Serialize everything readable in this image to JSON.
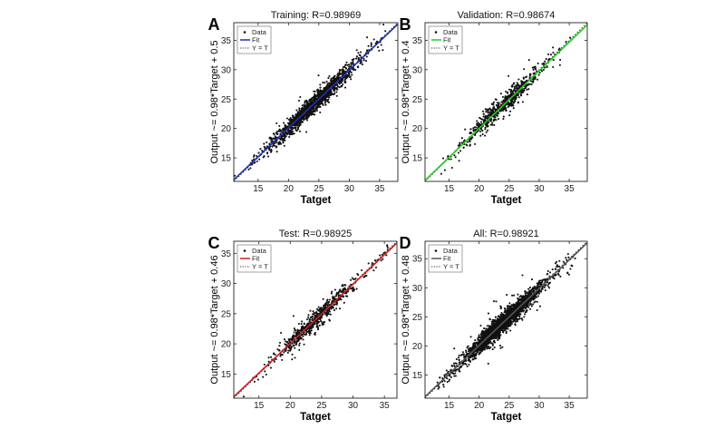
{
  "chart_data": [
    {
      "type": "scatter",
      "panel_letter": "A",
      "title": "Training: R=0.98969",
      "xlabel": "Tatget",
      "ylabel": "Output ~= 0.98*Target + 0.5",
      "xlim": [
        11,
        38
      ],
      "ylim": [
        11,
        38
      ],
      "xticks": [
        15,
        20,
        25,
        30,
        35
      ],
      "yticks": [
        15,
        20,
        25,
        30,
        35
      ],
      "fit": {
        "slope": 0.98,
        "intercept": 0.5,
        "color": "#1f2fb0"
      },
      "legend": [
        "Data",
        "Fit",
        "Y = T"
      ],
      "legend_position": "top-left",
      "n_points": 1500,
      "spread": 0.75,
      "seed": 11
    },
    {
      "type": "scatter",
      "panel_letter": "B",
      "title": "Validation: R=0.98674",
      "xlabel": "Tatget",
      "ylabel": "Output ~= 0.98*Target + 0.4",
      "xlim": [
        11,
        38
      ],
      "ylim": [
        11,
        38
      ],
      "xticks": [
        15,
        20,
        25,
        30,
        35
      ],
      "yticks": [
        15,
        20,
        25,
        30,
        35
      ],
      "fit": {
        "slope": 0.98,
        "intercept": 0.4,
        "color": "#22cc22"
      },
      "legend": [
        "Data",
        "Fit",
        "Y = T"
      ],
      "legend_position": "top-left",
      "n_points": 650,
      "spread": 0.8,
      "seed": 23
    },
    {
      "type": "scatter",
      "panel_letter": "C",
      "title": "Test: R=0.98925",
      "xlabel": "Tatget",
      "ylabel": "Output ~= 0.98*Target + 0.46",
      "xlim": [
        11,
        37
      ],
      "ylim": [
        11,
        37
      ],
      "xticks": [
        15,
        20,
        25,
        30,
        35
      ],
      "yticks": [
        15,
        20,
        25,
        30,
        35
      ],
      "fit": {
        "slope": 0.98,
        "intercept": 0.46,
        "color": "#cc1f1f"
      },
      "legend": [
        "Data",
        "Fit",
        "Y = T"
      ],
      "legend_position": "top-left",
      "n_points": 650,
      "spread": 0.75,
      "seed": 37
    },
    {
      "type": "scatter",
      "panel_letter": "D",
      "title": "All: R=0.98921",
      "xlabel": "Tatget",
      "ylabel": "Output ~= 0.98*Target + 0.48",
      "xlim": [
        11,
        38
      ],
      "ylim": [
        11,
        38
      ],
      "xticks": [
        15,
        20,
        25,
        30,
        35
      ],
      "yticks": [
        15,
        20,
        25,
        30,
        35
      ],
      "fit": {
        "slope": 0.98,
        "intercept": 0.48,
        "color": "#555555"
      },
      "legend": [
        "Data",
        "Fit",
        "Y = T"
      ],
      "legend_position": "top-left",
      "n_points": 2200,
      "spread": 0.8,
      "seed": 53
    }
  ]
}
